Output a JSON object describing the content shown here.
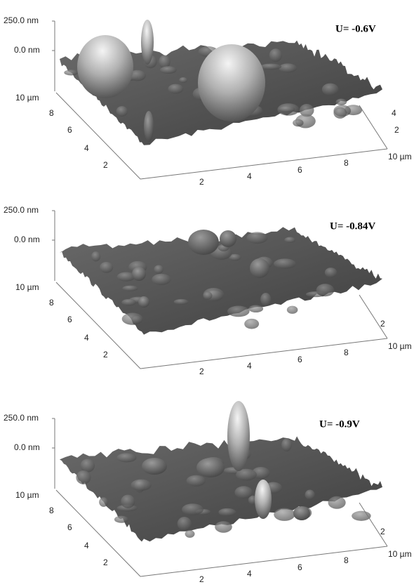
{
  "panels": [
    {
      "label": "U= -0.6V",
      "z_labels": [
        "250.0 nm",
        "0.0 nm"
      ],
      "y_ticks": [
        "10 µm",
        "8",
        "6",
        "4",
        "2"
      ],
      "x_ticks": [
        "2",
        "4",
        "6",
        "8",
        "10 µm"
      ],
      "side_ticks": [
        "4",
        "2"
      ]
    },
    {
      "label": "U= -0.84V",
      "z_labels": [
        "250.0 nm",
        "0.0 nm"
      ],
      "y_ticks": [
        "10 µm",
        "8",
        "6",
        "4",
        "2"
      ],
      "x_ticks": [
        "2",
        "4",
        "6",
        "8",
        "10 µm"
      ],
      "side_ticks": [
        "2"
      ]
    },
    {
      "label": "U= -0.9V",
      "z_labels": [
        "250.0 nm",
        "0.0 nm"
      ],
      "y_ticks": [
        "10 µm",
        "8",
        "6",
        "4",
        "2"
      ],
      "x_ticks": [
        "2",
        "4",
        "6",
        "8",
        "10 µm"
      ],
      "side_ticks": [
        "2"
      ]
    }
  ]
}
